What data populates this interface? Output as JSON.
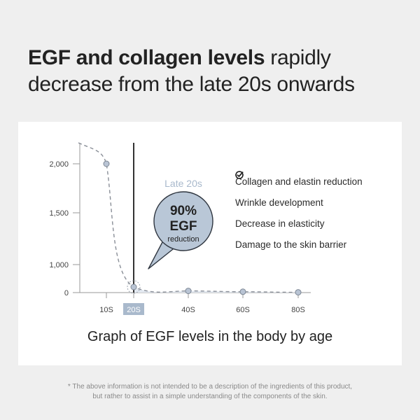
{
  "headline": {
    "bold": "EGF and collagen levels",
    "rest_line1": " rapidly",
    "line2": "decrease from the late 20s onwards"
  },
  "chart_data": {
    "type": "line",
    "title": "Graph of EGF levels in the body by age",
    "categories": [
      "10S",
      "20S",
      "40S",
      "60S",
      "80S"
    ],
    "highlighted_category": "20S",
    "y_ticks": [
      "2,000",
      "1,500",
      "1,000",
      "0"
    ],
    "series": [
      {
        "points": [
          {
            "x": "10S",
            "y": 2000
          },
          {
            "x": "20S",
            "y": 200
          },
          {
            "x": "40S",
            "y": 60
          },
          {
            "x": "60S",
            "y": 30
          },
          {
            "x": "80S",
            "y": 10
          }
        ]
      }
    ],
    "callout": {
      "label": "Late 20s",
      "value": "90%",
      "unit": "EGF",
      "text": "reduction"
    },
    "colors": {
      "line": "#8a8f98",
      "point": "#b9c4d4",
      "area": "#e3e9f1",
      "bubble": "#b9c7d7",
      "label_accent": "#a9b9cc",
      "highlight_tick": "#a9b9cc"
    }
  },
  "checklist": [
    "Collagen and elastin reduction",
    "Wrinkle development",
    "Decrease in elasticity",
    "Damage to the skin barrier"
  ],
  "footnote": {
    "line1": "* The above information is not intended to be a description of the ingredients of this product,",
    "line2": "but rather to assist in a simple understanding of the components of the skin."
  }
}
